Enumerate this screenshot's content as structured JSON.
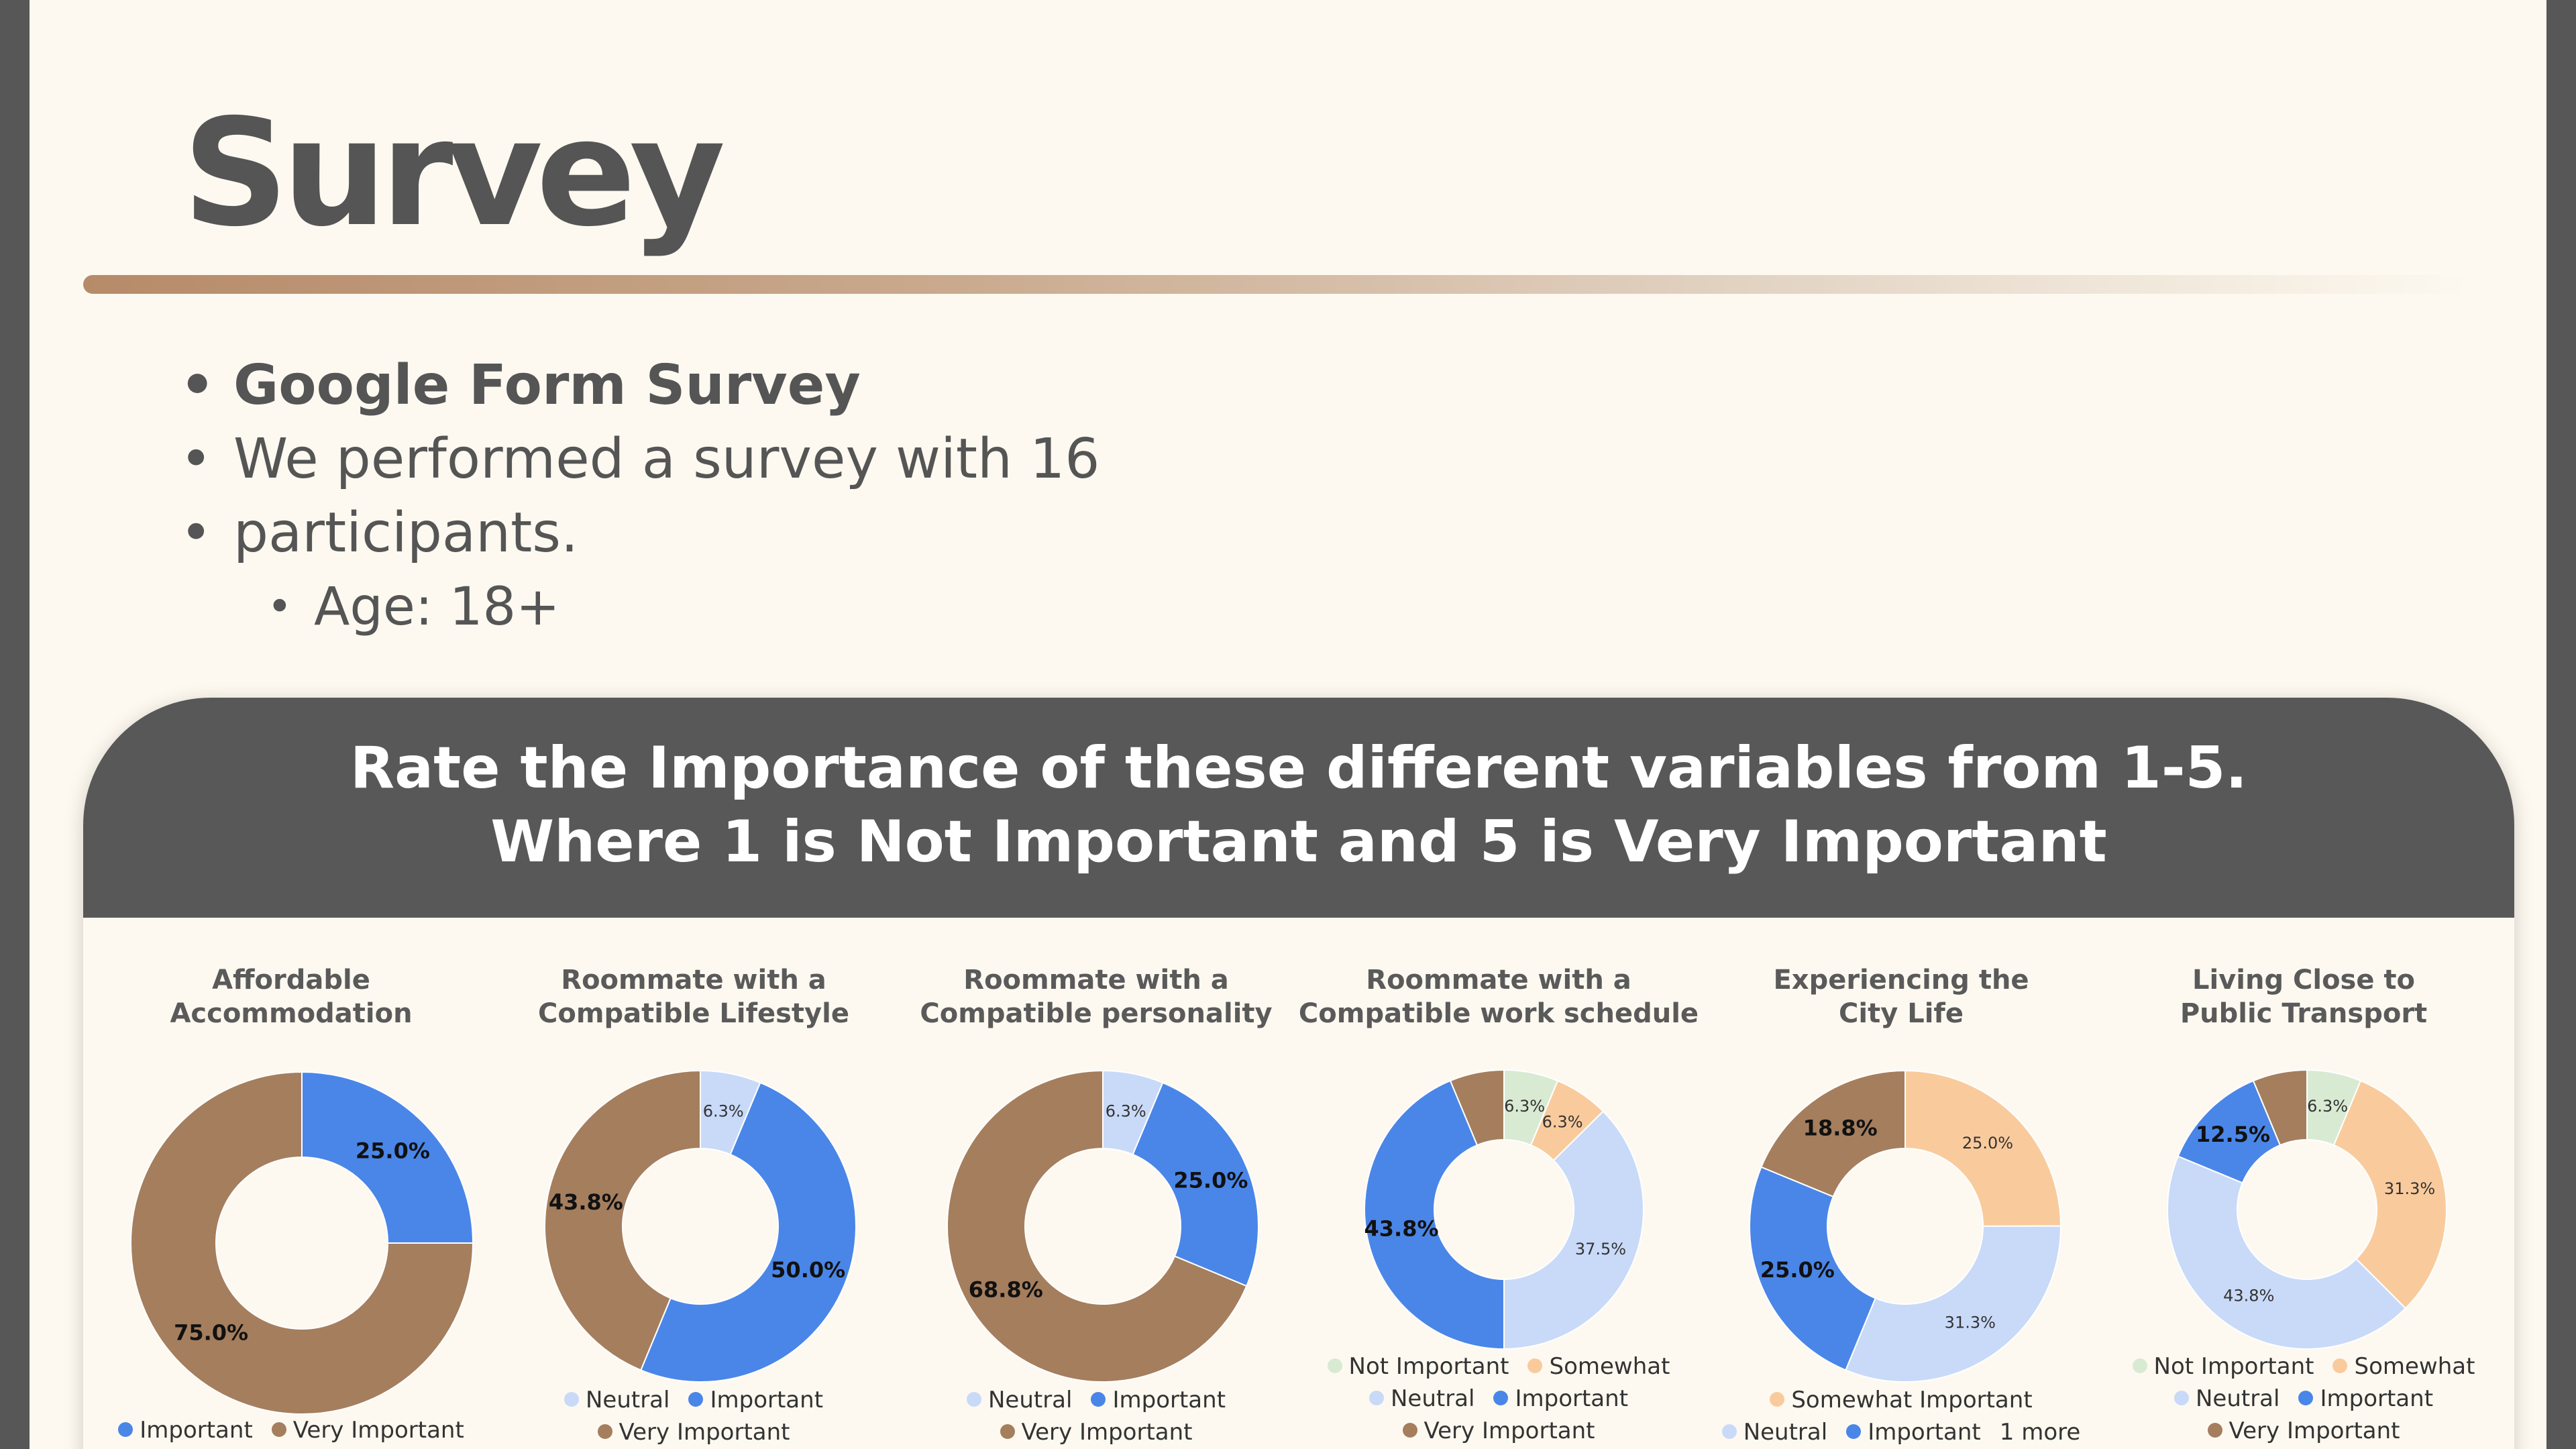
{
  "slide": {
    "title": "Survey",
    "bullets": [
      {
        "text": "Google Form Survey",
        "bold": true,
        "level": 1
      },
      {
        "text": "We performed a survey with 16",
        "bold": false,
        "level": 1
      },
      {
        "text": "participants.",
        "bold": false,
        "level": 1,
        "continuation": true
      },
      {
        "text": "Age: 18+",
        "bold": false,
        "level": 2
      }
    ],
    "panel_heading": [
      "Rate the Importance of these different variables from 1-5.",
      "Where 1 is Not Important and 5 is Very Important"
    ]
  },
  "colors": {
    "Not Important": "#d9ead3",
    "Somewhat Important": "#f9cb9c",
    "Somewhat": "#f9cb9c",
    "Neutral": "#c9daf8",
    "Important": "#4a86e8",
    "Very Important": "#a57e5e"
  },
  "chart_data": [
    {
      "type": "pie",
      "title": [
        "Affordable",
        "Accommodation"
      ],
      "slices": [
        {
          "label": "Important",
          "value": 25.0,
          "display": "25.0%"
        },
        {
          "label": "Very Important",
          "value": 75.0,
          "display": "75.0%"
        }
      ],
      "legend": [
        [
          "Important",
          "Very Important"
        ]
      ]
    },
    {
      "type": "pie",
      "title": [
        "Roommate with a",
        "Compatible Lifestyle"
      ],
      "slices": [
        {
          "label": "Neutral",
          "value": 6.3,
          "display": "6.3%"
        },
        {
          "label": "Important",
          "value": 50.0,
          "display": "50.0%"
        },
        {
          "label": "Very Important",
          "value": 43.8,
          "display": "43.8%"
        }
      ],
      "legend": [
        [
          "Neutral",
          "Important"
        ],
        [
          "Very Important"
        ]
      ]
    },
    {
      "type": "pie",
      "title": [
        "Roommate with a",
        "Compatible personality"
      ],
      "slices": [
        {
          "label": "Neutral",
          "value": 6.3,
          "display": "6.3%"
        },
        {
          "label": "Important",
          "value": 25.0,
          "display": "25.0%"
        },
        {
          "label": "Very Important",
          "value": 68.8,
          "display": "68.8%"
        }
      ],
      "legend": [
        [
          "Neutral",
          "Important"
        ],
        [
          "Very Important"
        ]
      ]
    },
    {
      "type": "pie",
      "title": [
        "Roommate with a",
        "Compatible work schedule"
      ],
      "slices": [
        {
          "label": "Not Important",
          "value": 6.3,
          "display": "6.3%"
        },
        {
          "label": "Somewhat Important",
          "value": 6.3,
          "display": "6.3%"
        },
        {
          "label": "Neutral",
          "value": 37.5,
          "display": "37.5%"
        },
        {
          "label": "Important",
          "value": 43.8,
          "display": "43.8%"
        },
        {
          "label": "Very Important",
          "value": 6.3,
          "display": ""
        }
      ],
      "legend": [
        [
          "Not Important",
          "Somewhat"
        ],
        [
          "Neutral",
          "Important"
        ],
        [
          "Very Important"
        ]
      ]
    },
    {
      "type": "pie",
      "title": [
        "Experiencing the",
        "City Life"
      ],
      "slices": [
        {
          "label": "Somewhat Important",
          "value": 25.0,
          "display": "25.0%"
        },
        {
          "label": "Neutral",
          "value": 31.3,
          "display": "31.3%"
        },
        {
          "label": "Important",
          "value": 25.0,
          "display": "25.0%"
        },
        {
          "label": "Very Important",
          "value": 18.8,
          "display": "18.8%"
        }
      ],
      "legend": [
        [
          "Somewhat Important"
        ],
        [
          "Neutral",
          "Important",
          "1 more"
        ]
      ]
    },
    {
      "type": "pie",
      "title": [
        "Living Close to",
        "Public Transport"
      ],
      "slices": [
        {
          "label": "Not Important",
          "value": 6.3,
          "display": "6.3%"
        },
        {
          "label": "Somewhat Important",
          "value": 31.3,
          "display": "31.3%"
        },
        {
          "label": "Neutral",
          "value": 43.8,
          "display": "43.8%"
        },
        {
          "label": "Important",
          "value": 12.5,
          "display": "12.5%"
        },
        {
          "label": "Very Important",
          "value": 6.3,
          "display": ""
        }
      ],
      "legend": [
        [
          "Not Important",
          "Somewhat"
        ],
        [
          "Neutral",
          "Important"
        ],
        [
          "Very Important"
        ]
      ]
    }
  ]
}
